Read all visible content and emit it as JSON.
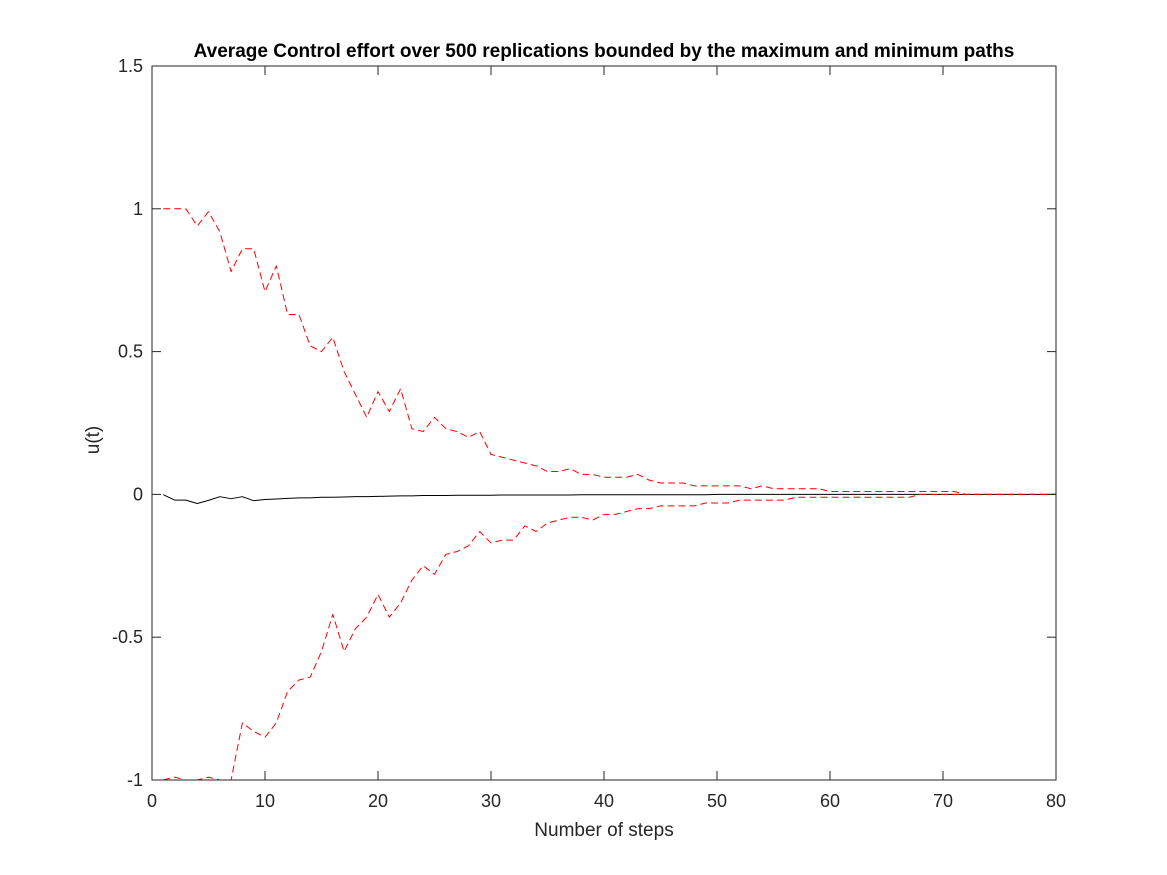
{
  "chart_data": {
    "type": "line",
    "title": "Average Control effort over 500 replications bounded by the maximum and minimum paths",
    "xlabel": "Number of steps",
    "ylabel": "u(t)",
    "xlim": [
      0,
      80
    ],
    "ylim": [
      -1,
      1.5
    ],
    "xticks": [
      "0",
      "10",
      "20",
      "30",
      "40",
      "50",
      "60",
      "70",
      "80"
    ],
    "yticks": [
      "-1",
      "-0.5",
      "0",
      "0.5",
      "1",
      "1.5"
    ],
    "grid": false,
    "box": true,
    "x": [
      1,
      2,
      3,
      4,
      5,
      6,
      7,
      8,
      9,
      10,
      11,
      12,
      13,
      14,
      15,
      16,
      17,
      18,
      19,
      20,
      21,
      22,
      23,
      24,
      25,
      26,
      27,
      28,
      29,
      30,
      31,
      32,
      33,
      34,
      35,
      36,
      37,
      38,
      39,
      40,
      41,
      42,
      43,
      44,
      45,
      46,
      47,
      48,
      49,
      50,
      51,
      52,
      53,
      54,
      55,
      56,
      57,
      58,
      59,
      60,
      61,
      62,
      63,
      64,
      65,
      66,
      67,
      68,
      69,
      70,
      71,
      72,
      73,
      74,
      75,
      76,
      77,
      78,
      79,
      80
    ],
    "series": [
      {
        "role": "maximum",
        "color": "#ff0000",
        "style": "dashed",
        "values": [
          1.0,
          1.0,
          1.0,
          0.94,
          0.99,
          0.92,
          0.78,
          0.86,
          0.86,
          0.71,
          0.8,
          0.63,
          0.63,
          0.52,
          0.5,
          0.55,
          0.43,
          0.35,
          0.27,
          0.36,
          0.29,
          0.37,
          0.23,
          0.22,
          0.27,
          0.23,
          0.22,
          0.2,
          0.22,
          0.14,
          0.13,
          0.12,
          0.11,
          0.1,
          0.08,
          0.08,
          0.09,
          0.07,
          0.07,
          0.06,
          0.06,
          0.06,
          0.07,
          0.05,
          0.04,
          0.04,
          0.04,
          0.03,
          0.03,
          0.03,
          0.03,
          0.03,
          0.02,
          0.03,
          0.02,
          0.02,
          0.02,
          0.02,
          0.02,
          0.01,
          0.01,
          0.01,
          0.01,
          0.01,
          0.01,
          0.01,
          0.01,
          0.01,
          0.01,
          0.01,
          0.01,
          0.0,
          0.0,
          0.0,
          0.0,
          0.0,
          0.0,
          0.0,
          0.0,
          0.0
        ]
      },
      {
        "role": "average",
        "color": "#000000",
        "style": "solid",
        "values": [
          -0.001,
          -0.02,
          -0.02,
          -0.032,
          -0.021,
          -0.008,
          -0.015,
          -0.008,
          -0.022,
          -0.018,
          -0.016,
          -0.014,
          -0.012,
          -0.012,
          -0.01,
          -0.01,
          -0.009,
          -0.008,
          -0.008,
          -0.007,
          -0.006,
          -0.005,
          -0.005,
          -0.004,
          -0.004,
          -0.004,
          -0.003,
          -0.003,
          -0.003,
          -0.003,
          -0.002,
          -0.002,
          -0.002,
          -0.002,
          -0.002,
          -0.002,
          -0.002,
          -0.001,
          -0.001,
          -0.001,
          -0.001,
          -0.001,
          -0.001,
          -0.001,
          -0.001,
          -0.001,
          -0.001,
          -0.001,
          -0.001,
          0,
          0,
          0,
          0,
          0,
          0,
          0,
          0,
          0,
          0,
          0,
          0,
          0,
          0,
          0,
          0,
          0,
          0,
          0,
          0,
          0,
          0,
          0,
          0,
          0,
          0,
          0,
          0,
          0,
          0,
          0
        ]
      },
      {
        "role": "minimum",
        "color": "#ff0000",
        "style": "dashed",
        "values": [
          -1.0,
          -0.99,
          -1.0,
          -1.0,
          -0.99,
          -1.0,
          -1.0,
          -0.8,
          -0.83,
          -0.85,
          -0.8,
          -0.69,
          -0.65,
          -0.64,
          -0.55,
          -0.42,
          -0.55,
          -0.47,
          -0.43,
          -0.35,
          -0.43,
          -0.38,
          -0.3,
          -0.25,
          -0.28,
          -0.21,
          -0.2,
          -0.18,
          -0.13,
          -0.17,
          -0.16,
          -0.16,
          -0.11,
          -0.13,
          -0.1,
          -0.09,
          -0.08,
          -0.08,
          -0.09,
          -0.07,
          -0.07,
          -0.06,
          -0.05,
          -0.05,
          -0.04,
          -0.04,
          -0.04,
          -0.04,
          -0.03,
          -0.03,
          -0.03,
          -0.02,
          -0.02,
          -0.02,
          -0.02,
          -0.02,
          -0.01,
          -0.01,
          -0.01,
          -0.01,
          -0.01,
          -0.01,
          -0.01,
          -0.01,
          -0.01,
          -0.01,
          -0.01,
          0.0,
          0.0,
          0.0,
          0.0,
          0.0,
          0.0,
          0.0,
          0.0,
          0.0,
          0.0,
          0.0,
          0.0,
          0.0
        ]
      }
    ]
  }
}
